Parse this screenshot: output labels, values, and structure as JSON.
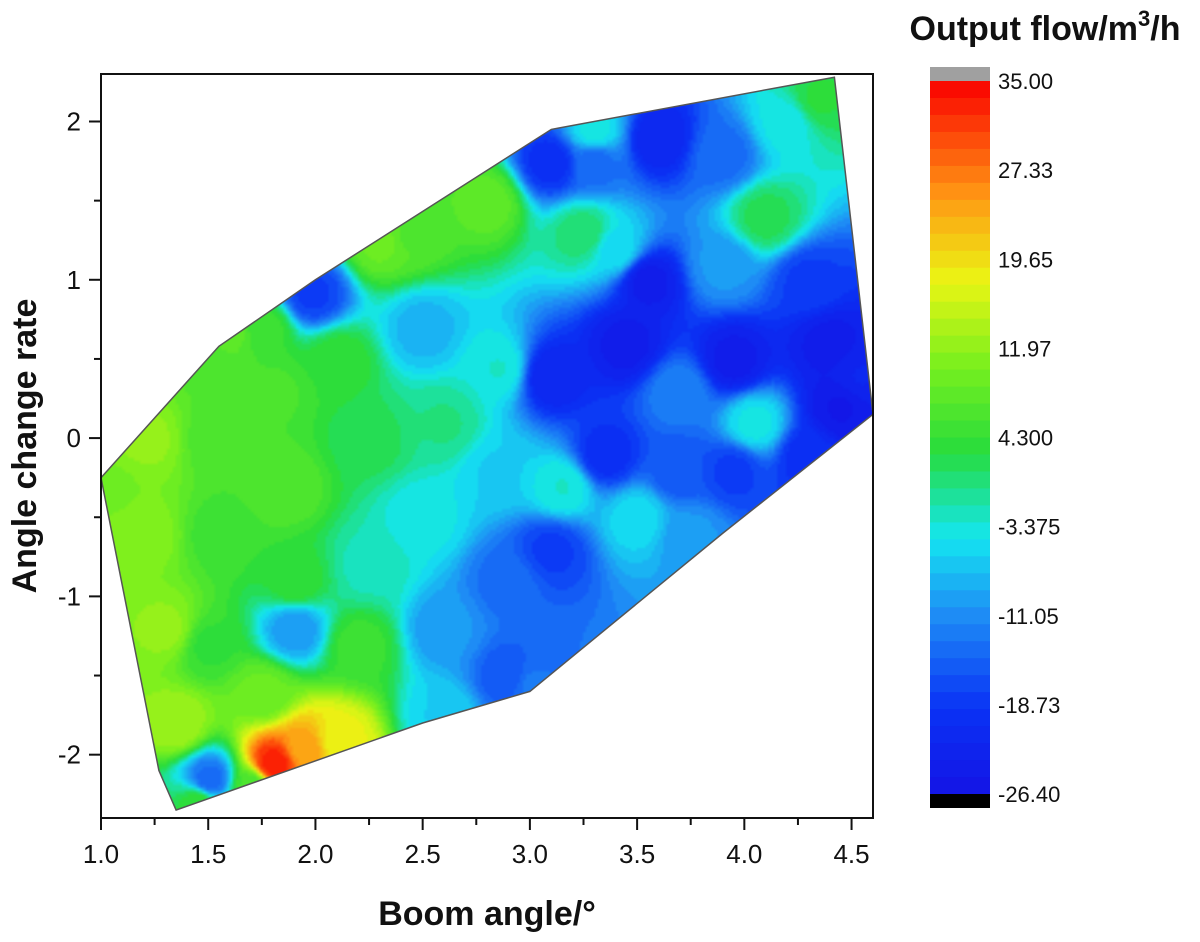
{
  "chart_data": {
    "type": "contour",
    "xlabel": "Boom angle/°",
    "ylabel": "Angle change rate",
    "xlim": [
      1.0,
      4.6
    ],
    "ylim": [
      -2.4,
      2.3
    ],
    "x_ticks": [
      "1.0",
      "1.5",
      "2.0",
      "2.5",
      "3.0",
      "3.5",
      "4.0",
      "4.5"
    ],
    "y_ticks": [
      "2",
      "1",
      "0",
      "-1",
      "-2"
    ],
    "colorbar": {
      "title_main": "Output flow/m",
      "title_sup": "3",
      "title_tail": "/h",
      "labels": [
        "35.00",
        "27.33",
        "19.65",
        "11.97",
        "4.300",
        "-3.375",
        "-11.05",
        "-18.73",
        "-26.40"
      ],
      "min": -26.4,
      "max": 35.0,
      "above_color": "#a0a0a0",
      "below_color": "#000000"
    },
    "hull": [
      [
        1.0,
        -0.25
      ],
      [
        1.55,
        0.58
      ],
      [
        2.0,
        1.0
      ],
      [
        3.1,
        1.95
      ],
      [
        4.42,
        2.28
      ],
      [
        4.6,
        0.15
      ],
      [
        3.9,
        -0.6
      ],
      [
        3.0,
        -1.6
      ],
      [
        2.5,
        -1.8
      ],
      [
        1.35,
        -2.35
      ],
      [
        1.27,
        -2.1
      ],
      [
        1.0,
        -0.25
      ]
    ],
    "samples": [
      [
        1.05,
        -0.3,
        10
      ],
      [
        1.2,
        0.0,
        12
      ],
      [
        1.2,
        -0.6,
        11
      ],
      [
        1.3,
        -1.2,
        12
      ],
      [
        1.35,
        -1.8,
        13
      ],
      [
        1.5,
        0.5,
        7
      ],
      [
        1.55,
        0.0,
        6
      ],
      [
        1.55,
        -0.6,
        5
      ],
      [
        1.5,
        -1.3,
        4
      ],
      [
        1.5,
        -2.15,
        -14
      ],
      [
        1.8,
        -2.05,
        33
      ],
      [
        1.95,
        -1.95,
        24
      ],
      [
        2.1,
        -1.9,
        18
      ],
      [
        1.75,
        -1.6,
        9
      ],
      [
        1.75,
        0.7,
        5
      ],
      [
        1.8,
        0.3,
        6
      ],
      [
        1.85,
        -0.3,
        7
      ],
      [
        1.9,
        -0.9,
        4
      ],
      [
        1.9,
        -1.2,
        -10
      ],
      [
        1.98,
        0.92,
        -18
      ],
      [
        2.1,
        0.5,
        4
      ],
      [
        2.25,
        0.0,
        2
      ],
      [
        2.25,
        -0.8,
        -2
      ],
      [
        2.2,
        -1.3,
        5
      ],
      [
        2.5,
        0.7,
        -8
      ],
      [
        2.45,
        1.3,
        7
      ],
      [
        2.6,
        0.1,
        0
      ],
      [
        2.5,
        -0.5,
        -4
      ],
      [
        2.6,
        -1.2,
        -10
      ],
      [
        2.8,
        1.5,
        8
      ],
      [
        2.85,
        0.45,
        -3
      ],
      [
        2.85,
        -0.2,
        -6
      ],
      [
        2.9,
        -0.9,
        -14
      ],
      [
        2.9,
        -1.5,
        -16
      ],
      [
        3.1,
        1.75,
        -20
      ],
      [
        3.25,
        1.3,
        1
      ],
      [
        3.1,
        0.4,
        -22
      ],
      [
        3.15,
        -0.3,
        -3
      ],
      [
        3.1,
        -0.7,
        -18
      ],
      [
        3.3,
        1.75,
        -14
      ],
      [
        3.4,
        1.2,
        -5
      ],
      [
        3.45,
        0.6,
        -24
      ],
      [
        3.35,
        -0.1,
        -20
      ],
      [
        3.5,
        -0.5,
        -5
      ],
      [
        3.6,
        1.9,
        -22
      ],
      [
        3.55,
        1.0,
        -24
      ],
      [
        3.7,
        0.3,
        -12
      ],
      [
        3.7,
        -0.2,
        -16
      ],
      [
        3.75,
        -0.6,
        -10
      ],
      [
        3.9,
        1.8,
        -14
      ],
      [
        3.9,
        1.1,
        -10
      ],
      [
        3.95,
        0.5,
        -24
      ],
      [
        4.05,
        0.1,
        -4
      ],
      [
        3.95,
        -0.2,
        -18
      ],
      [
        4.1,
        1.4,
        2
      ],
      [
        4.2,
        2.0,
        -4
      ],
      [
        4.3,
        1.0,
        -18
      ],
      [
        4.4,
        0.6,
        -24
      ],
      [
        4.45,
        0.2,
        -25
      ],
      [
        4.35,
        2.15,
        3
      ],
      [
        4.55,
        0.4,
        -22
      ],
      [
        4.3,
        -0.1,
        -20
      ],
      [
        3.3,
        1.95,
        -4
      ],
      [
        2.3,
        1.25,
        9
      ],
      [
        1.6,
        0.7,
        8
      ],
      [
        2.6,
        -1.75,
        -6
      ],
      [
        3.0,
        -1.55,
        -13
      ],
      [
        1.7,
        -2.2,
        6
      ],
      [
        1.45,
        -2.3,
        4
      ]
    ]
  }
}
